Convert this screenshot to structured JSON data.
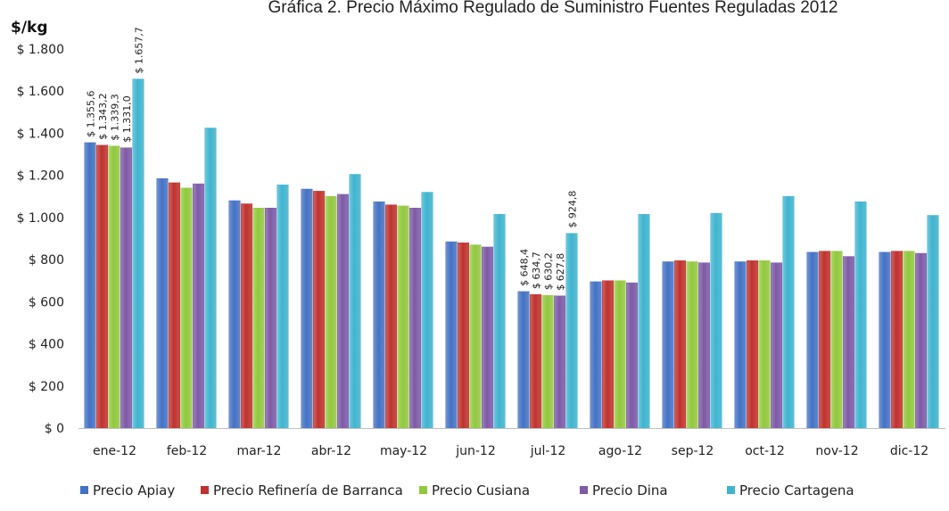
{
  "chart_data": {
    "type": "bar",
    "title": "Gráfica 2. Precio Máximo Regulado de Suministro Fuentes Reguladas 2012",
    "ylabel": "$/kg",
    "xlabel": "",
    "ylim": [
      0,
      1800
    ],
    "yticks": [
      0,
      200,
      400,
      600,
      800,
      1000,
      1200,
      1400,
      1600,
      1800
    ],
    "ytick_labels": [
      "$ 0",
      "$ 200",
      "$ 400",
      "$ 600",
      "$ 800",
      "$ 1.000",
      "$ 1.200",
      "$ 1.400",
      "$ 1.600",
      "$ 1.800"
    ],
    "categories": [
      "ene-12",
      "feb-12",
      "mar-12",
      "abr-12",
      "may-12",
      "jun-12",
      "jul-12",
      "ago-12",
      "sep-12",
      "oct-12",
      "nov-12",
      "dic-12"
    ],
    "legend_position": "bottom",
    "grid": false,
    "series": [
      {
        "name": "Precio Apiay",
        "color": "#4472C4",
        "values": [
          1355.6,
          1185,
          1080,
          1135,
          1075,
          885,
          648.4,
          695,
          790,
          790,
          835,
          835
        ]
      },
      {
        "name": "Precio Refinería de Barranca",
        "color": "#C0322E",
        "values": [
          1343.2,
          1165,
          1065,
          1125,
          1060,
          880,
          634.7,
          700,
          795,
          795,
          840,
          840
        ]
      },
      {
        "name": "Precio Cusiana",
        "color": "#92C83E",
        "values": [
          1339.3,
          1140,
          1045,
          1100,
          1055,
          870,
          630.2,
          700,
          790,
          795,
          840,
          840
        ]
      },
      {
        "name": "Precio Dina",
        "color": "#7E5AA7",
        "values": [
          1331.0,
          1160,
          1045,
          1110,
          1045,
          860,
          627.8,
          690,
          785,
          785,
          815,
          830
        ]
      },
      {
        "name": "Precio Cartagena",
        "color": "#3FB4CF",
        "values": [
          1657.7,
          1425,
          1155,
          1205,
          1120,
          1015,
          924.8,
          1015,
          1020,
          1100,
          1075,
          1010
        ]
      }
    ],
    "data_labels": [
      {
        "category": "ene-12",
        "texts": [
          "$ 1.355,6",
          "$ 1.343,2",
          "$ 1.339,3",
          "$ 1.331,0",
          "$ 1.657,7"
        ]
      },
      {
        "category": "jul-12",
        "texts": [
          "$ 648,4",
          "$ 634,7",
          "$ 630,2",
          "$ 627,8",
          "$ 924,8"
        ]
      }
    ]
  }
}
